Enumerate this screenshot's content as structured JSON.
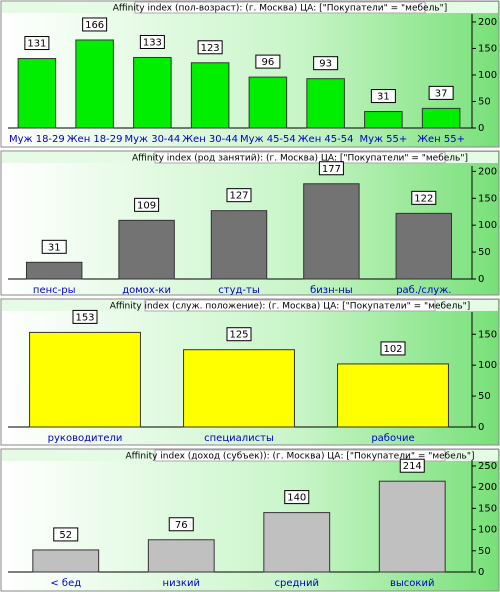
{
  "chart_data": [
    {
      "type": "bar",
      "title": "Affinity index (пол-возраст): (г. Москва)   ЦА: [\"Покупатели\" = \"мебель\"]",
      "categories": [
        "Муж 18-29",
        "Жен 18-29",
        "Муж 30-44",
        "Жен 30-44",
        "Муж 45-54",
        "Жен 45-54",
        "Муж 55+",
        "Жен 55+"
      ],
      "values": [
        131,
        166,
        133,
        123,
        96,
        93,
        31,
        37
      ],
      "color": "#00ee00",
      "ylim": [
        0,
        215
      ],
      "yticks": [
        0,
        50,
        100,
        150,
        200
      ]
    },
    {
      "type": "bar",
      "title": "Affinity index (род занятий): (г. Москва)   ЦА: [\"Покупатели\" = \"мебель\"]",
      "categories": [
        "пенс-ры",
        "домох-ки",
        "студ-ты",
        "бизн-ны",
        "раб./служ."
      ],
      "values": [
        31,
        109,
        127,
        177,
        122
      ],
      "color": "#737373",
      "ylim": [
        0,
        210
      ],
      "yticks": [
        0,
        50,
        100,
        150,
        200
      ]
    },
    {
      "type": "bar",
      "title": "Affinity index (служ. положение): (г. Москва)   ЦА: [\"Покупатели\" = \"мебель\"]",
      "categories": [
        "руководители",
        "специалисты",
        "рабочие"
      ],
      "values": [
        153,
        125,
        102
      ],
      "color": "#ffff00",
      "ylim": [
        0,
        186
      ],
      "yticks": [
        0,
        50,
        100,
        150
      ]
    },
    {
      "type": "bar",
      "title": "Affinity index (доход (субъек)): (г. Москва)   ЦА: [\"Покупатели\" = \"мебель\"]",
      "categories": [
        "< бед",
        "низкий",
        "средний",
        "высокий"
      ],
      "values": [
        52,
        76,
        140,
        214
      ],
      "color": "#c0c0c0",
      "ylim": [
        0,
        264
      ],
      "yticks": [
        0,
        50,
        100,
        150,
        200,
        250
      ]
    }
  ]
}
